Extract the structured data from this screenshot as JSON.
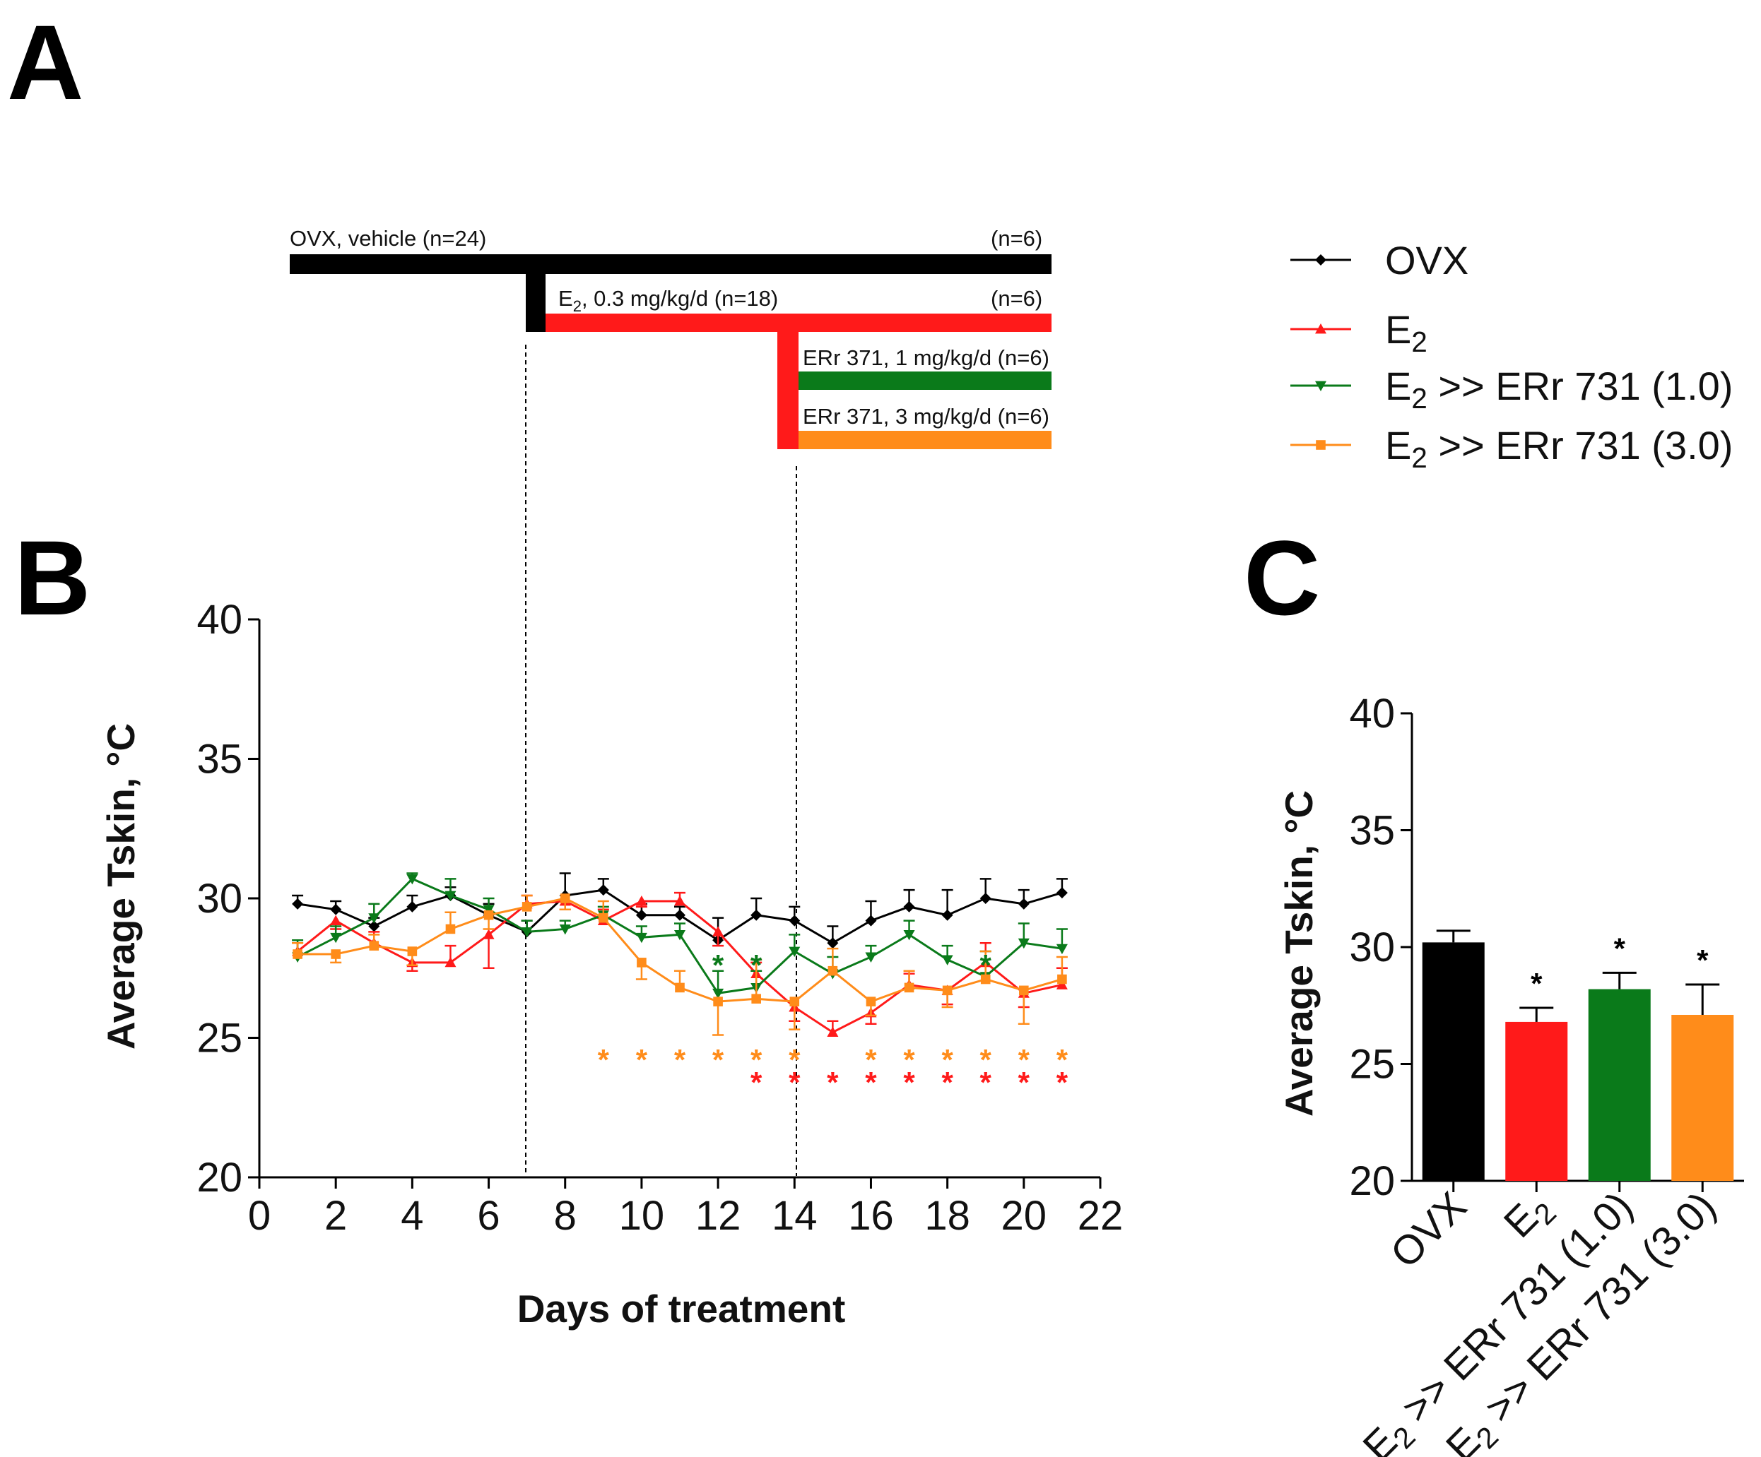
{
  "panels": {
    "a": "A",
    "b": "B",
    "c": "C"
  },
  "colors": {
    "ovx": "#000000",
    "e2": "#ff1a1a",
    "err1": "#0a7a1a",
    "err3": "#ff8c1a"
  },
  "timeline": {
    "ovx_label": "OVX, vehicle (n=24)",
    "ovx_n": "(n=6)",
    "e2_label_main": "E",
    "e2_label_sub": "2",
    "e2_label_rest": ", 0.3 mg/kg/d (n=18)",
    "e2_n": "(n=6)",
    "err1_label": "ERr 371, 1 mg/kg/d (n=6)",
    "err3_label": "ERr 371, 3 mg/kg/d (n=6)"
  },
  "legend": [
    {
      "key": "ovx",
      "label": "OVX",
      "sub": "",
      "rest": "",
      "marker": "diamond"
    },
    {
      "key": "e2",
      "label": "E",
      "sub": "2",
      "rest": "",
      "marker": "triangle-up"
    },
    {
      "key": "err1",
      "label": "E",
      "sub": "2",
      "rest": " >> ERr 731 (1.0)",
      "marker": "triangle-down"
    },
    {
      "key": "err3",
      "label": "E",
      "sub": "2",
      "rest": " >> ERr 731 (3.0)",
      "marker": "square"
    }
  ],
  "chart_data": [
    {
      "type": "line",
      "xlabel": "Days of treatment",
      "ylabel": "Average Tskin, °C",
      "xlim": [
        0,
        22
      ],
      "ylim": [
        20,
        40
      ],
      "xticks": [
        0,
        2,
        4,
        6,
        8,
        10,
        12,
        14,
        16,
        18,
        20,
        22
      ],
      "yticks": [
        20,
        25,
        30,
        35,
        40
      ],
      "vlines": [
        7,
        14
      ],
      "x": [
        1,
        2,
        3,
        4,
        5,
        6,
        7,
        8,
        9,
        10,
        11,
        12,
        13,
        14,
        15,
        16,
        17,
        18,
        19,
        20,
        21
      ],
      "series": [
        {
          "name": "OVX",
          "color_key": "ovx",
          "marker": "diamond",
          "values": [
            29.8,
            29.6,
            29.0,
            29.7,
            30.1,
            29.4,
            28.8,
            30.1,
            30.3,
            29.4,
            29.4,
            28.5,
            29.4,
            29.2,
            28.4,
            29.2,
            29.7,
            29.4,
            30.0,
            29.8,
            30.2
          ],
          "errors": [
            0.3,
            0.3,
            0.3,
            0.4,
            0.3,
            0.4,
            0.4,
            0.8,
            0.4,
            0.4,
            0.3,
            0.8,
            0.6,
            0.5,
            0.6,
            0.7,
            0.6,
            0.9,
            0.7,
            0.5,
            0.5
          ]
        },
        {
          "name": "E2",
          "color_key": "e2",
          "marker": "triangle-up",
          "values": [
            28.1,
            29.2,
            28.4,
            27.7,
            27.7,
            28.7,
            29.8,
            29.9,
            29.2,
            29.9,
            29.9,
            28.8,
            27.3,
            26.1,
            25.2,
            25.9,
            26.9,
            26.7,
            27.7,
            26.6,
            26.9
          ],
          "errors": [
            0.3,
            0.3,
            0.4,
            0.3,
            0.6,
            1.2,
            0.3,
            0.3,
            0.4,
            0.2,
            0.3,
            0.5,
            0.4,
            0.5,
            0.4,
            0.4,
            0.4,
            0.5,
            0.7,
            0.5,
            0.6
          ]
        },
        {
          "name": "E2 >> ERr 731 (1.0)",
          "color_key": "err1",
          "marker": "triangle-down",
          "values": [
            27.9,
            28.6,
            29.3,
            30.7,
            30.1,
            29.6,
            28.8,
            28.9,
            29.4,
            28.6,
            28.7,
            26.6,
            26.8,
            28.1,
            27.3,
            27.9,
            28.7,
            27.8,
            27.2,
            28.4,
            28.2
          ],
          "errors": [
            0.6,
            0.4,
            0.5,
            0.2,
            0.6,
            0.4,
            0.4,
            0.3,
            0.3,
            0.4,
            0.4,
            0.8,
            0.6,
            0.6,
            0.6,
            0.4,
            0.5,
            0.5,
            0.9,
            0.7,
            0.7
          ]
        },
        {
          "name": "E2 >> ERr 731 (3.0)",
          "color_key": "err3",
          "marker": "square",
          "values": [
            28.0,
            28.0,
            28.3,
            28.1,
            28.9,
            29.4,
            29.7,
            30.0,
            29.3,
            27.7,
            26.8,
            26.3,
            26.4,
            26.3,
            27.4,
            26.3,
            26.8,
            26.7,
            27.1,
            26.7,
            27.1
          ],
          "errors": [
            0.4,
            0.3,
            0.4,
            0.5,
            0.6,
            0.5,
            0.4,
            0.4,
            0.6,
            0.6,
            0.6,
            1.2,
            1.4,
            1.0,
            0.8,
            0.5,
            0.6,
            0.6,
            1.0,
            1.2,
            0.8
          ]
        }
      ],
      "annotations": {
        "star": "*",
        "err1_stars": [
          12,
          13,
          19
        ],
        "err3_stars": [
          9,
          10,
          11,
          12,
          13,
          14,
          16,
          17,
          18,
          19,
          20,
          21
        ],
        "e2_stars": [
          13,
          14,
          15,
          16,
          17,
          18,
          19,
          20,
          21
        ]
      }
    },
    {
      "type": "bar",
      "ylabel": "Average Tskin, °C",
      "ylim": [
        20,
        40
      ],
      "yticks": [
        20,
        25,
        30,
        35,
        40
      ],
      "categories": [
        {
          "label": "OVX",
          "sub": "",
          "rest": ""
        },
        {
          "label": "E",
          "sub": "2",
          "rest": ""
        },
        {
          "label": "E",
          "sub": "2",
          "rest": " >> ERr 731 (1.0)"
        },
        {
          "label": "E",
          "sub": "2",
          "rest": " >> ERr 731 (3.0)"
        }
      ],
      "color_keys": [
        "ovx",
        "e2",
        "err1",
        "err3"
      ],
      "values": [
        30.2,
        26.8,
        28.2,
        27.1
      ],
      "errors": [
        0.5,
        0.6,
        0.7,
        1.3
      ],
      "significance": [
        "",
        "*",
        "*",
        "*"
      ]
    }
  ]
}
